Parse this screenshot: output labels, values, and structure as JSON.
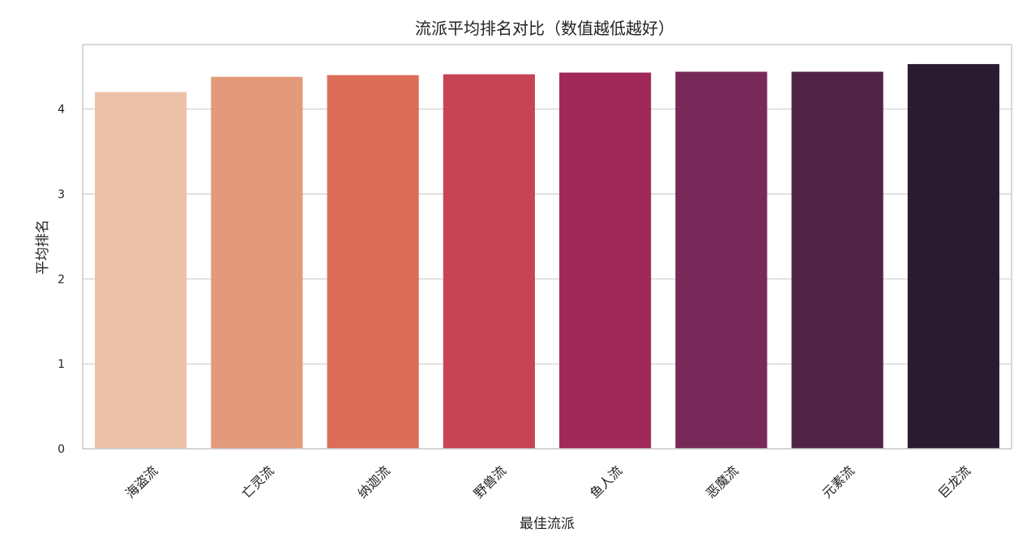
{
  "chart_data": {
    "type": "bar",
    "title": "流派平均排名对比（数值越低越好）",
    "xlabel": "最佳流派",
    "ylabel": "平均排名",
    "categories": [
      "海盗流",
      "亡灵流",
      "纳迦流",
      "野兽流",
      "鱼人流",
      "恶魔流",
      "元素流",
      "巨龙流"
    ],
    "values": [
      4.2,
      4.38,
      4.4,
      4.41,
      4.43,
      4.44,
      4.44,
      4.53
    ],
    "colors": [
      "#ecc1a7",
      "#e39a7b",
      "#dc6e58",
      "#c74455",
      "#a0295a",
      "#772a59",
      "#512446",
      "#291b30"
    ],
    "ylim": [
      0,
      4.76
    ],
    "yticks": [
      0,
      1,
      2,
      3,
      4
    ],
    "grid": true
  }
}
